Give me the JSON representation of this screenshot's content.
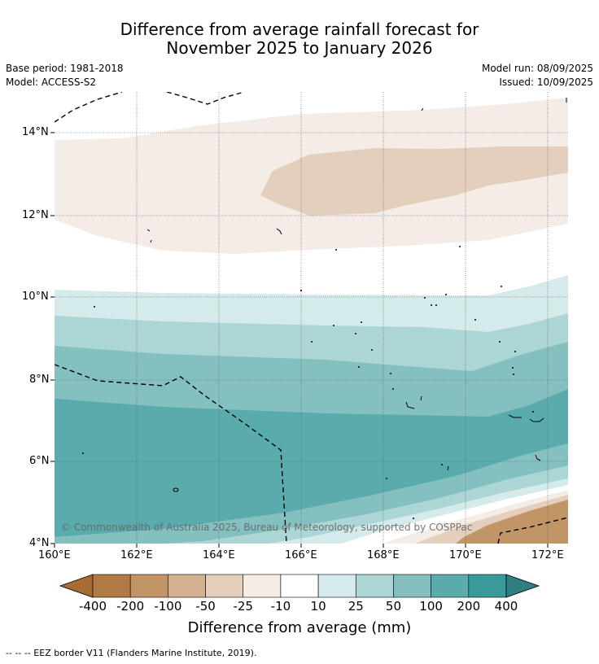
{
  "title_line1": "Difference from average rainfall forecast for",
  "title_line2": "November 2025 to January 2026",
  "base_period": "Base period: 1981-2018",
  "model": "Model: ACCESS-S2",
  "model_run": "Model run: 08/09/2025",
  "issued": "Issued: 10/09/2025",
  "copyright": "© Commonwealth of Australia 2025, Bureau of Meteorology, supported by COSPPac",
  "lat_labels": [
    "14°N",
    "12°N",
    "10°N",
    "8°N",
    "6°N",
    "4°N"
  ],
  "lon_labels": [
    "160°E",
    "162°E",
    "164°E",
    "166°E",
    "168°E",
    "170°E",
    "172°E"
  ],
  "colorbar": {
    "title": "Difference from average (mm)",
    "tick_labels": [
      "-400",
      "-200",
      "-100",
      "-50",
      "-25",
      "-10",
      "10",
      "25",
      "50",
      "100",
      "200",
      "400"
    ],
    "colors": [
      "#a86c32",
      "#b17a44",
      "#c29566",
      "#d4b190",
      "#e3cfbc",
      "#f4ece6",
      "#ffffff",
      "#d5eaea",
      "#acd5d5",
      "#84c0c0",
      "#5aabab",
      "#389a9a",
      "#2e8080"
    ]
  },
  "eez_note": "--  --  -- EEZ border V11 (Flanders Marine Institute, 2019)."
}
